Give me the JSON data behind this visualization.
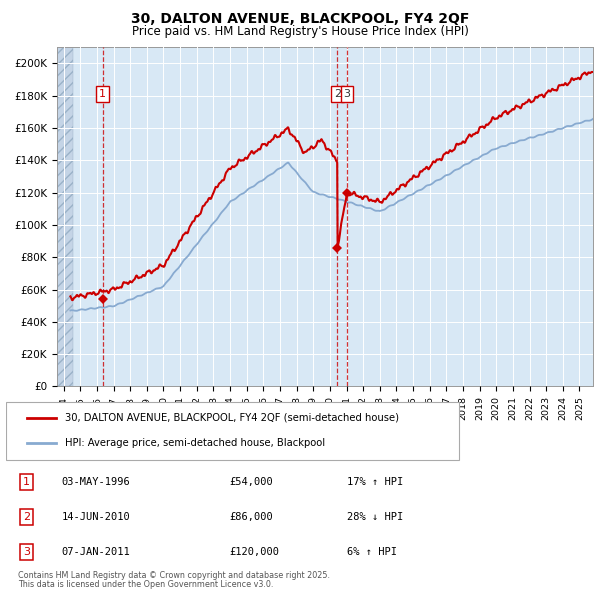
{
  "title_line1": "30, DALTON AVENUE, BLACKPOOL, FY4 2QF",
  "title_line2": "Price paid vs. HM Land Registry's House Price Index (HPI)",
  "ylabel_ticks": [
    "£0",
    "£20K",
    "£40K",
    "£60K",
    "£80K",
    "£100K",
    "£120K",
    "£140K",
    "£160K",
    "£180K",
    "£200K"
  ],
  "ytick_values": [
    0,
    20000,
    40000,
    60000,
    80000,
    100000,
    120000,
    140000,
    160000,
    180000,
    200000
  ],
  "ylim": [
    0,
    210000
  ],
  "xlim_start": 1993.6,
  "xlim_end": 2025.8,
  "background_color": "#d8e8f5",
  "hatch_color": "#c4d4e6",
  "grid_color": "#ffffff",
  "sale_color": "#cc0000",
  "hpi_color": "#88aad0",
  "legend_sale_label": "30, DALTON AVENUE, BLACKPOOL, FY4 2QF (semi-detached house)",
  "legend_hpi_label": "HPI: Average price, semi-detached house, Blackpool",
  "transactions": [
    {
      "num": 1,
      "date": "03-MAY-1996",
      "price": 54000,
      "rel": "17% ↑ HPI",
      "year": 1996.35
    },
    {
      "num": 2,
      "date": "14-JUN-2010",
      "price": 86000,
      "rel": "28% ↓ HPI",
      "year": 2010.45
    },
    {
      "num": 3,
      "date": "07-JAN-2011",
      "price": 120000,
      "rel": "6% ↑ HPI",
      "year": 2011.03
    }
  ],
  "footer_line1": "Contains HM Land Registry data © Crown copyright and database right 2025.",
  "footer_line2": "This data is licensed under the Open Government Licence v3.0."
}
